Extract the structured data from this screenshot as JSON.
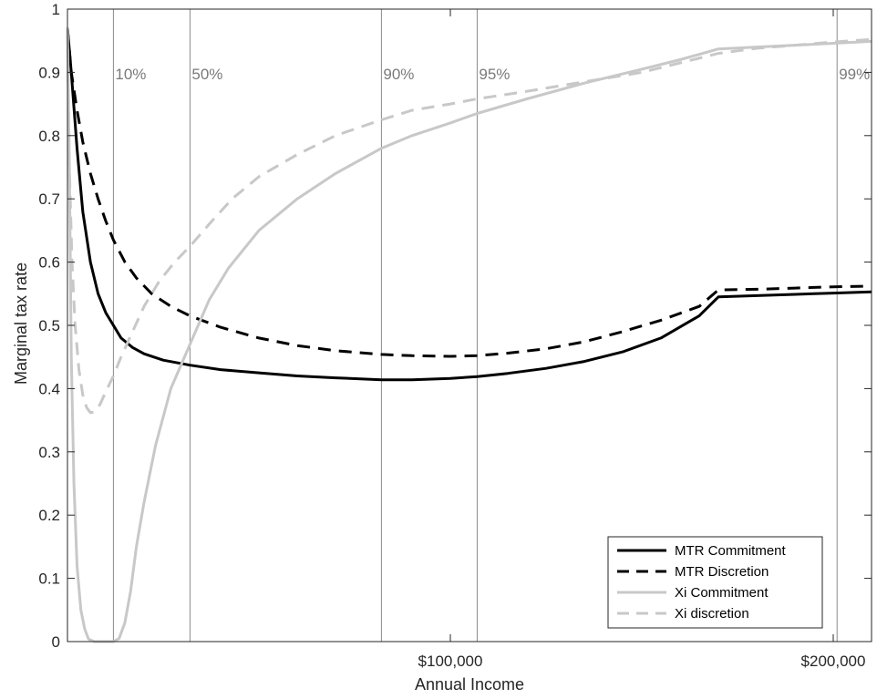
{
  "chart_data": {
    "type": "line",
    "xlabel": "Annual Income",
    "ylabel": "Marginal tax rate",
    "xlim": [
      0,
      210000
    ],
    "ylim": [
      0,
      1
    ],
    "xticks": [
      {
        "value": 100000,
        "label": "$100,000"
      },
      {
        "value": 200000,
        "label": "$200,000"
      }
    ],
    "yticks": [
      {
        "value": 0,
        "label": "0"
      },
      {
        "value": 0.1,
        "label": "0.1"
      },
      {
        "value": 0.2,
        "label": "0.2"
      },
      {
        "value": 0.3,
        "label": "0.3"
      },
      {
        "value": 0.4,
        "label": "0.4"
      },
      {
        "value": 0.5,
        "label": "0.5"
      },
      {
        "value": 0.6,
        "label": "0.6"
      },
      {
        "value": 0.7,
        "label": "0.7"
      },
      {
        "value": 0.8,
        "label": "0.8"
      },
      {
        "value": 0.9,
        "label": "0.9"
      },
      {
        "value": 1,
        "label": "1"
      }
    ],
    "percentile_lines": [
      {
        "label": "10%",
        "x": 12000
      },
      {
        "label": "50%",
        "x": 32000
      },
      {
        "label": "90%",
        "x": 82000
      },
      {
        "label": "95%",
        "x": 107000
      },
      {
        "label": "99%",
        "x": 201000
      }
    ],
    "grid": false,
    "legend_position": "bottom-right",
    "series": [
      {
        "name": "MTR Commitment",
        "color": "#000000",
        "dash": "solid",
        "x": [
          0,
          1000,
          2500,
          4000,
          6000,
          8000,
          10000,
          12000,
          14000,
          17000,
          20000,
          25000,
          32000,
          40000,
          50000,
          60000,
          70000,
          82000,
          90000,
          100000,
          107000,
          115000,
          125000,
          135000,
          145000,
          155000,
          165000,
          170000,
          180000,
          190000,
          200000,
          210000
        ],
        "y": [
          0.97,
          0.9,
          0.78,
          0.68,
          0.6,
          0.55,
          0.52,
          0.5,
          0.48,
          0.465,
          0.455,
          0.445,
          0.437,
          0.43,
          0.425,
          0.42,
          0.417,
          0.414,
          0.414,
          0.416,
          0.419,
          0.424,
          0.432,
          0.443,
          0.458,
          0.48,
          0.515,
          0.545,
          0.547,
          0.549,
          0.551,
          0.553
        ]
      },
      {
        "name": "MTR Discretion",
        "color": "#000000",
        "dash": "dashed",
        "x": [
          0,
          1000,
          2500,
          4000,
          6000,
          8000,
          10000,
          12000,
          15000,
          18000,
          22000,
          27000,
          32000,
          40000,
          50000,
          60000,
          70000,
          82000,
          90000,
          100000,
          107000,
          115000,
          125000,
          135000,
          145000,
          155000,
          165000,
          170000,
          180000,
          190000,
          200000,
          210000
        ],
        "y": [
          0.97,
          0.9,
          0.84,
          0.79,
          0.74,
          0.7,
          0.665,
          0.635,
          0.6,
          0.575,
          0.55,
          0.53,
          0.515,
          0.497,
          0.48,
          0.468,
          0.46,
          0.454,
          0.452,
          0.451,
          0.452,
          0.456,
          0.463,
          0.474,
          0.49,
          0.508,
          0.53,
          0.556,
          0.557,
          0.559,
          0.561,
          0.562
        ]
      },
      {
        "name": "Xi Commitment",
        "color": "#c8c8c8",
        "dash": "solid",
        "x": [
          0,
          500,
          1000,
          1700,
          2500,
          3500,
          4500,
          5500,
          7000,
          8500,
          10000,
          12000,
          13500,
          15000,
          16500,
          18000,
          20000,
          23000,
          27000,
          32000,
          37000,
          42000,
          50000,
          60000,
          70000,
          82000,
          90000,
          100000,
          107000,
          120000,
          135000,
          150000,
          160000,
          170000,
          180000,
          190000,
          200000,
          210000
        ],
        "y": [
          0.97,
          0.75,
          0.45,
          0.25,
          0.12,
          0.05,
          0.02,
          0.004,
          0.0,
          0.0,
          0.0,
          0.0,
          0.005,
          0.03,
          0.08,
          0.15,
          0.22,
          0.31,
          0.4,
          0.47,
          0.54,
          0.59,
          0.65,
          0.7,
          0.74,
          0.78,
          0.8,
          0.82,
          0.835,
          0.858,
          0.883,
          0.905,
          0.92,
          0.937,
          0.94,
          0.943,
          0.946,
          0.949
        ]
      },
      {
        "name": "Xi discretion",
        "color": "#c8c8c8",
        "dash": "dashed",
        "x": [
          0,
          500,
          1200,
          2000,
          3000,
          4000,
          5000,
          6000,
          7000,
          8500,
          10000,
          12000,
          14000,
          17000,
          20000,
          24000,
          28000,
          32000,
          37000,
          43000,
          50000,
          60000,
          70000,
          82000,
          90000,
          100000,
          107000,
          120000,
          135000,
          150000,
          160000,
          170000,
          180000,
          190000,
          200000,
          210000
        ],
        "y": [
          0.97,
          0.75,
          0.6,
          0.5,
          0.43,
          0.39,
          0.37,
          0.362,
          0.363,
          0.375,
          0.395,
          0.42,
          0.45,
          0.49,
          0.53,
          0.57,
          0.6,
          0.625,
          0.66,
          0.7,
          0.735,
          0.77,
          0.8,
          0.825,
          0.84,
          0.85,
          0.858,
          0.87,
          0.885,
          0.9,
          0.915,
          0.93,
          0.938,
          0.943,
          0.948,
          0.952
        ]
      }
    ]
  }
}
